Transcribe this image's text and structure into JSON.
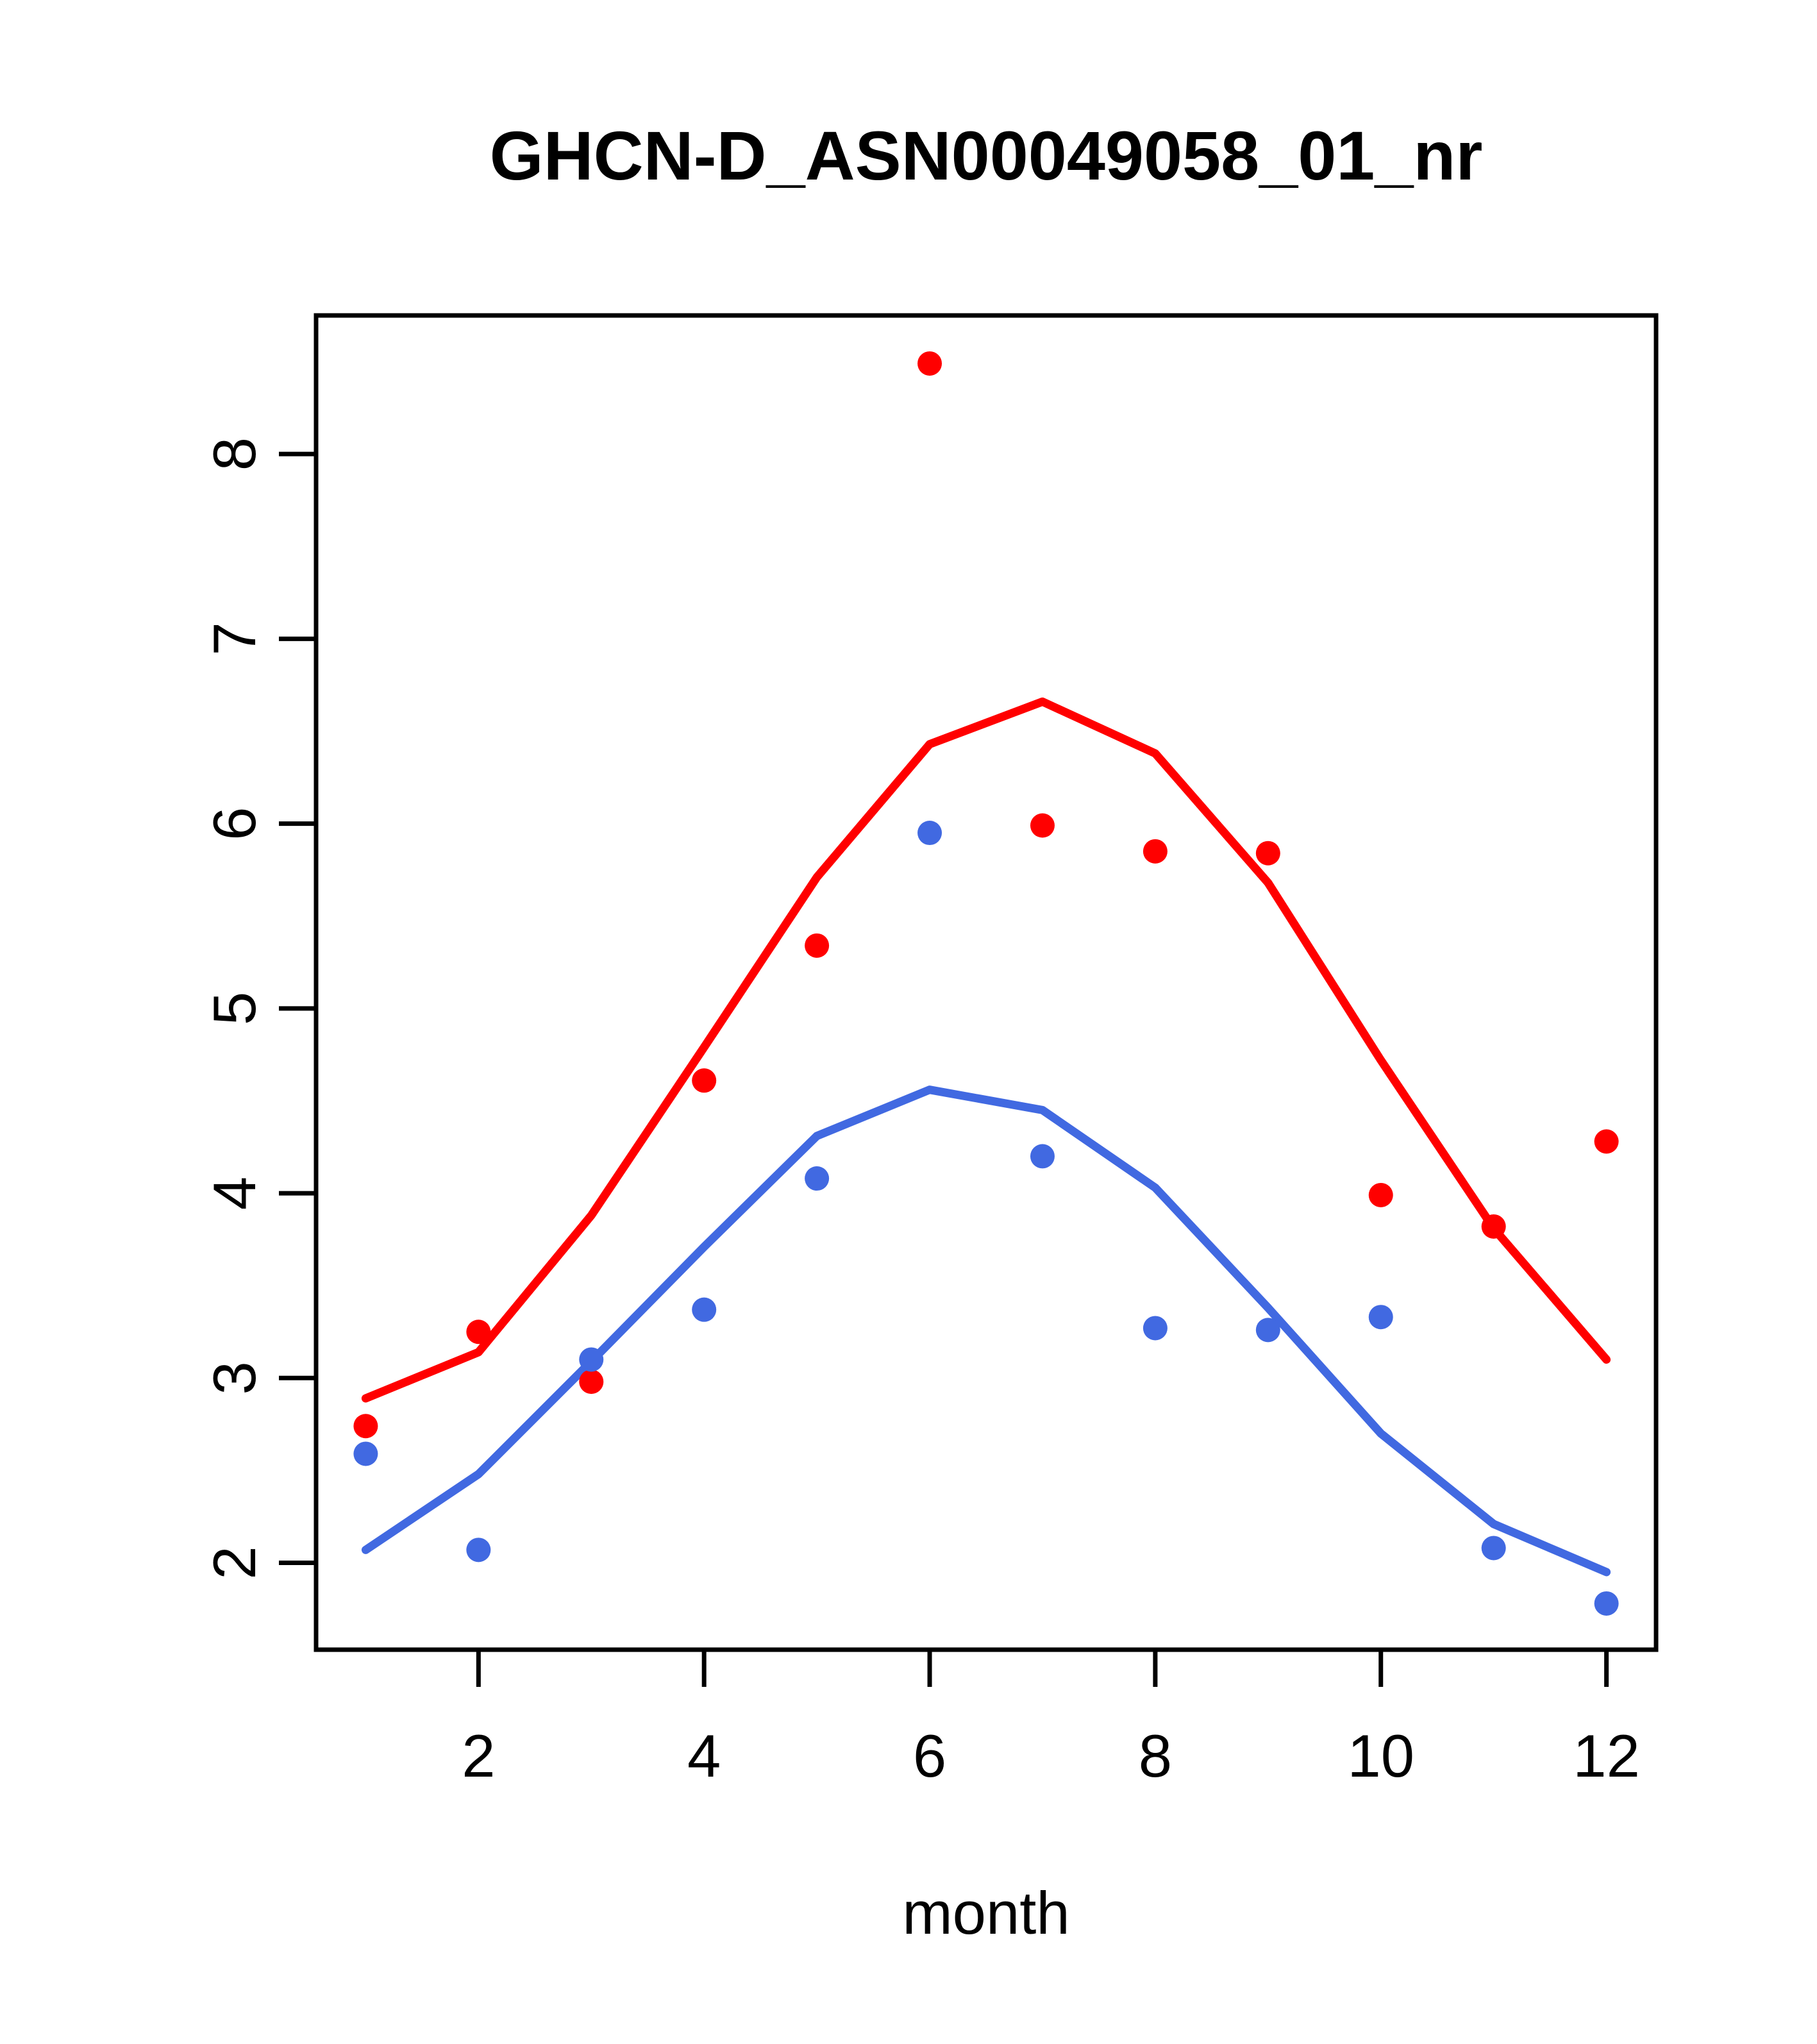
{
  "chart_data": {
    "type": "line",
    "title": "GHCN-D_ASN00049058_01_nr",
    "xlabel": "month",
    "ylabel": "",
    "x": [
      1,
      2,
      3,
      4,
      5,
      6,
      7,
      8,
      9,
      10,
      11,
      12
    ],
    "x_tick_labels": [
      "2",
      "4",
      "6",
      "8",
      "10",
      "12"
    ],
    "x_tick_values": [
      2,
      4,
      6,
      8,
      10,
      12
    ],
    "y_tick_labels": [
      "2",
      "3",
      "4",
      "5",
      "6",
      "7",
      "8"
    ],
    "y_tick_values": [
      2,
      3,
      4,
      5,
      6,
      7,
      8
    ],
    "xlim": [
      0.56,
      12.44
    ],
    "ylim": [
      1.53,
      8.75
    ],
    "grid": false,
    "legend_position": "none",
    "colors": {
      "red": "#FF0000",
      "blue": "#4169E1",
      "axis": "#000000"
    },
    "series": [
      {
        "name": "red-points",
        "kind": "scatter",
        "color": "#FF0000",
        "values": [
          2.74,
          3.25,
          2.98,
          4.61,
          5.34,
          8.49,
          5.99,
          5.85,
          5.84,
          3.99,
          3.82,
          4.28
        ]
      },
      {
        "name": "red-line",
        "kind": "line",
        "color": "#FF0000",
        "values": [
          2.89,
          3.14,
          3.88,
          4.79,
          5.71,
          6.43,
          6.66,
          6.38,
          5.68,
          4.72,
          3.81,
          3.1
        ]
      },
      {
        "name": "blue-points",
        "kind": "scatter",
        "color": "#4169E1",
        "values": [
          2.59,
          2.07,
          3.1,
          3.37,
          4.08,
          5.95,
          4.2,
          3.27,
          3.26,
          3.33,
          2.08,
          1.78
        ]
      },
      {
        "name": "blue-line",
        "kind": "line",
        "color": "#4169E1",
        "values": [
          2.07,
          2.48,
          3.09,
          3.71,
          4.31,
          4.56,
          4.45,
          4.03,
          3.38,
          2.7,
          2.21,
          1.95
        ]
      }
    ]
  }
}
